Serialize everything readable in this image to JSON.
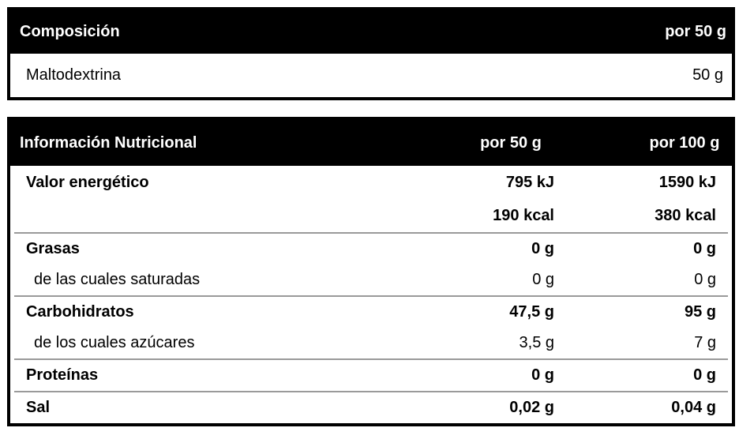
{
  "colors": {
    "header_bg": "#000000",
    "header_text": "#ffffff",
    "body_text": "#000000",
    "table_border": "#000000",
    "row_divider": "#9a9a9a",
    "page_bg": "#ffffff"
  },
  "composition_table": {
    "header": {
      "title": "Composición",
      "col_per_50g": "por 50 g"
    },
    "rows": [
      {
        "label": "Maltodextrina",
        "per_50g": "50 g"
      }
    ]
  },
  "nutrition_table": {
    "header": {
      "title": "Información Nutricional",
      "col_per_50g": "por 50 g",
      "col_per_100g": "por 100 g"
    },
    "rows": [
      {
        "label": "Valor energético",
        "per_50g": "795 kJ",
        "per_100g": "1590 kJ"
      },
      {
        "label": "",
        "per_50g": "190 kcal",
        "per_100g": "380 kcal"
      },
      {
        "label": "Grasas",
        "per_50g": "0 g",
        "per_100g": "0 g"
      },
      {
        "label": "de las cuales saturadas",
        "per_50g": "0 g",
        "per_100g": "0 g"
      },
      {
        "label": "Carbohidratos",
        "per_50g": "47,5 g",
        "per_100g": "95 g"
      },
      {
        "label": "de los cuales azúcares",
        "per_50g": "3,5 g",
        "per_100g": "7 g"
      },
      {
        "label": "Proteínas",
        "per_50g": "0 g",
        "per_100g": "0 g"
      },
      {
        "label": "Sal",
        "per_50g": "0,02 g",
        "per_100g": "0,04 g"
      }
    ]
  }
}
